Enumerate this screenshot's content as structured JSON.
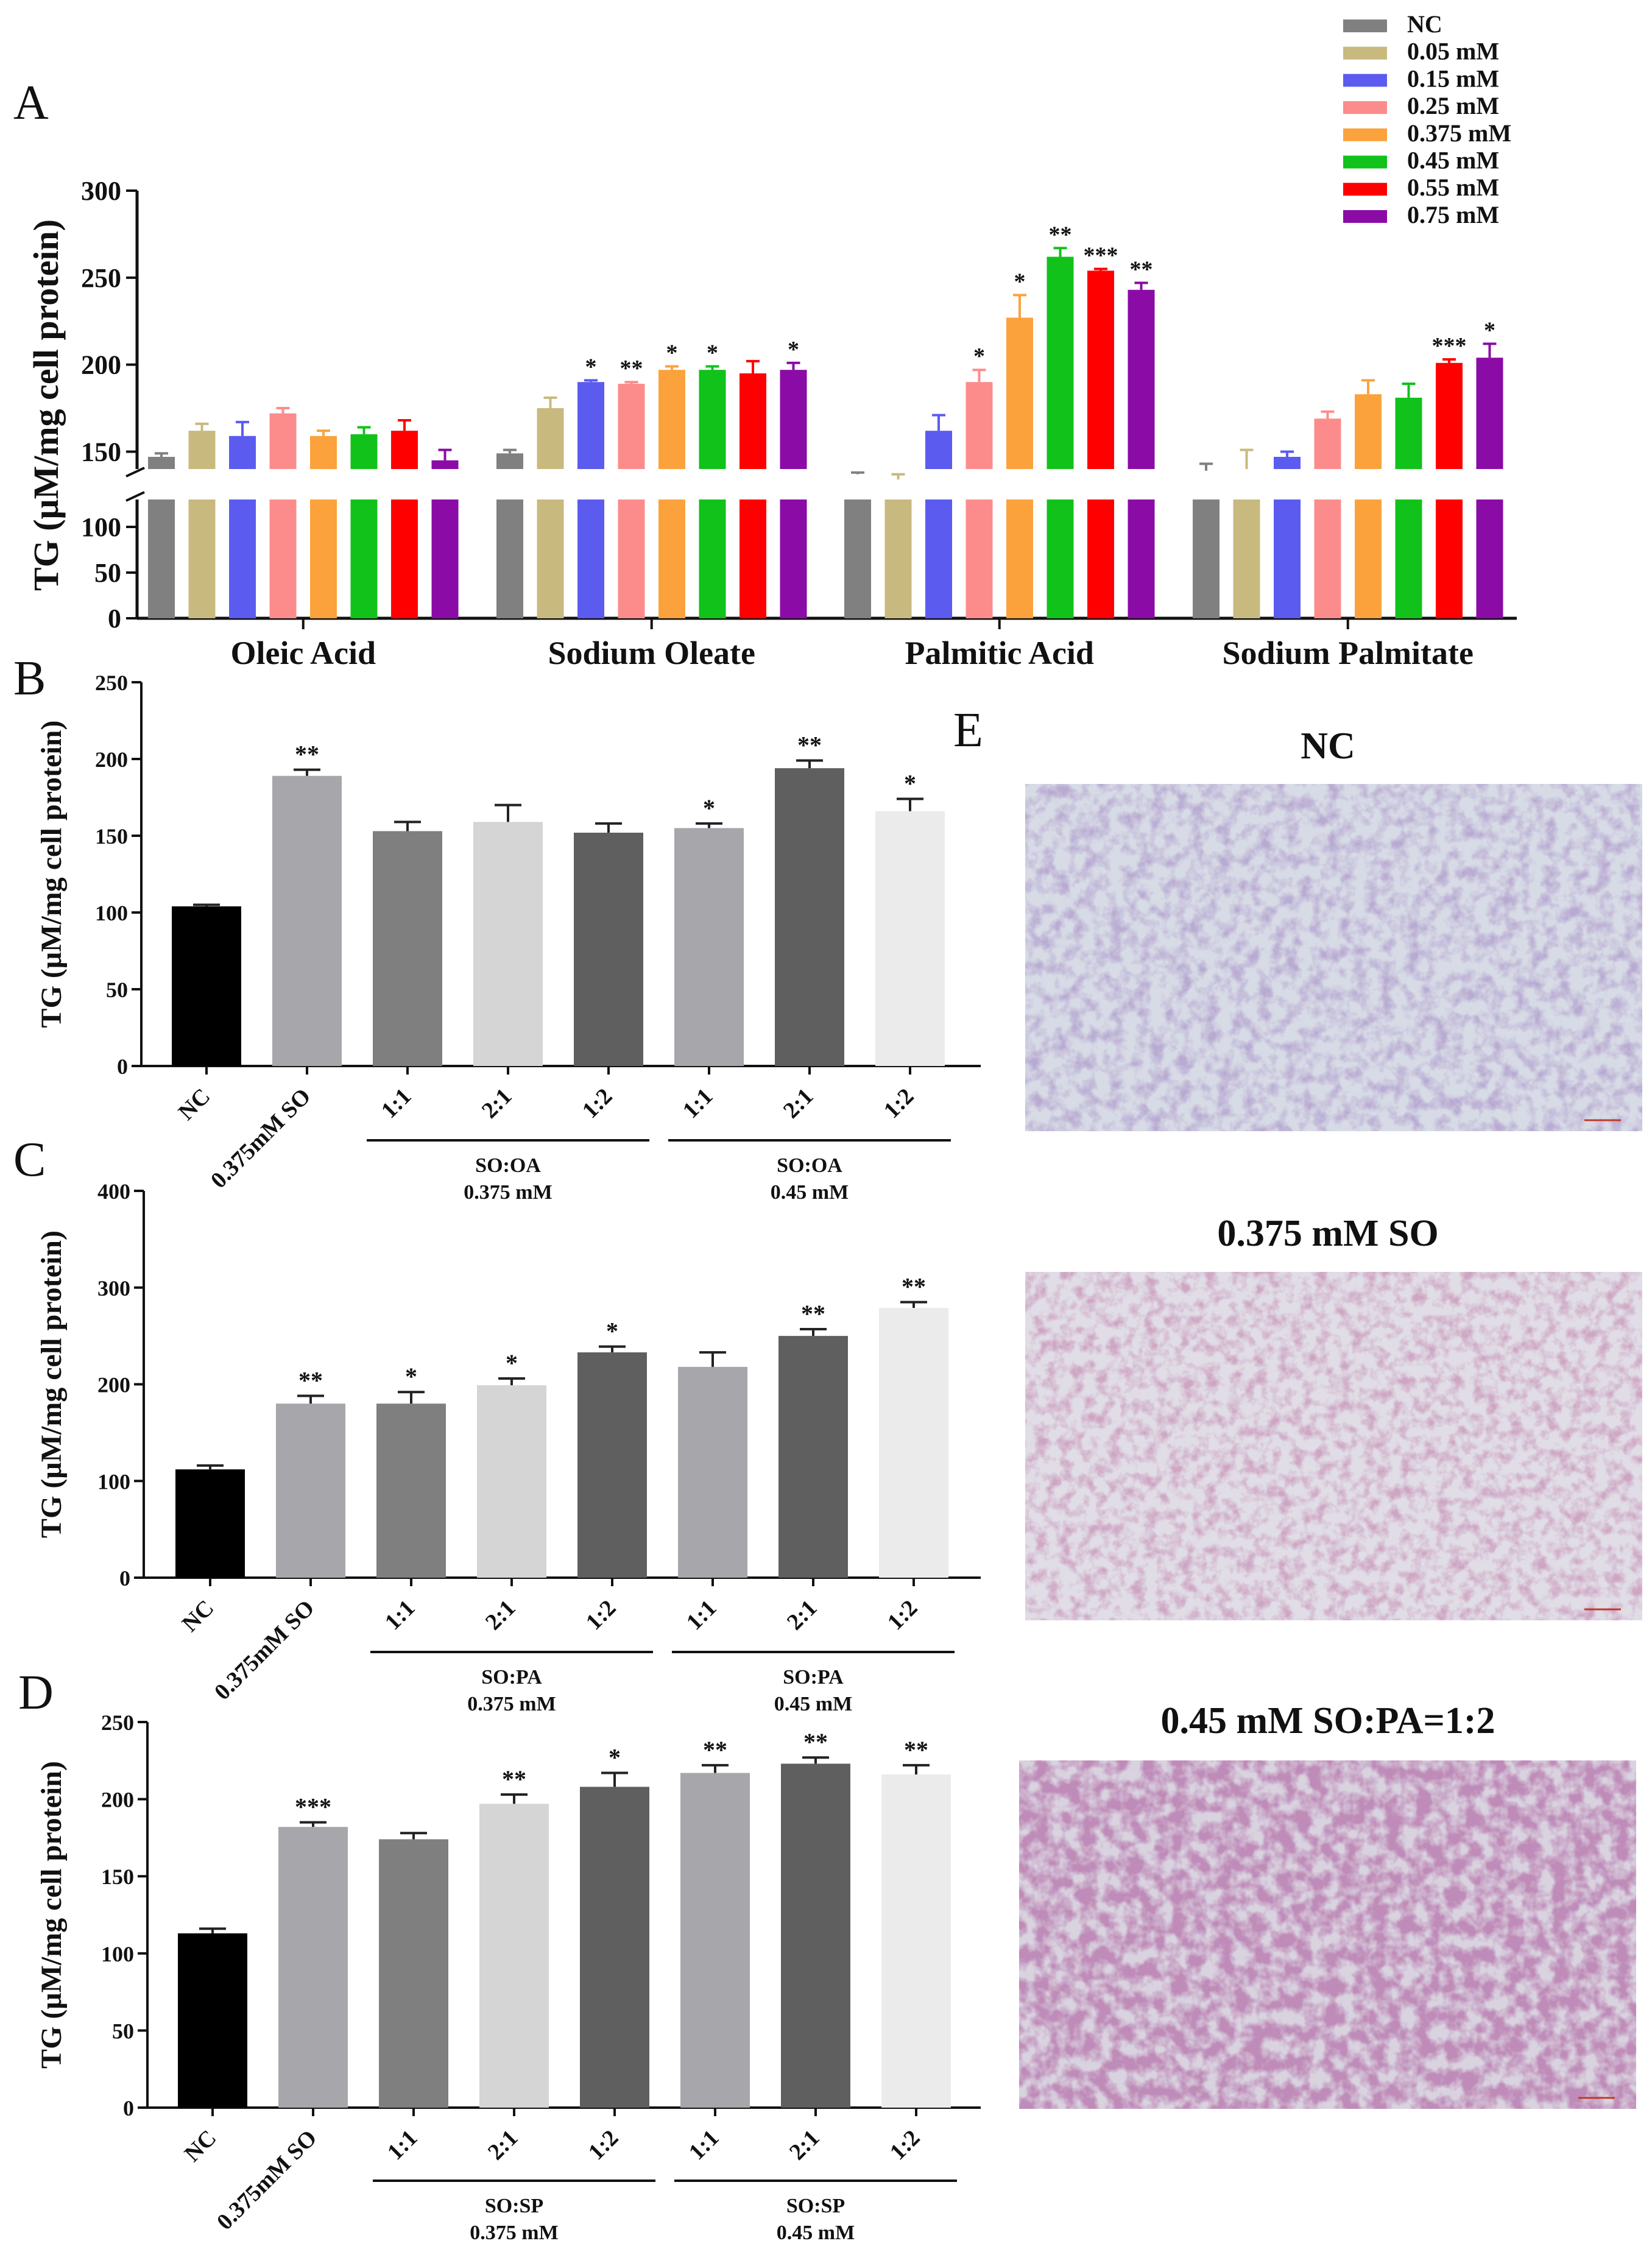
{
  "panel_letters": [
    "A",
    "B",
    "C",
    "D",
    "E"
  ],
  "colors": {
    "conc": [
      "#808080",
      "#c8b97e",
      "#5b5bf0",
      "#fc8c8c",
      "#fba23c",
      "#11c21a",
      "#ff0000",
      "#8a0ba5"
    ],
    "grays": [
      "#000000",
      "#a7a6ab",
      "#7f7f7f",
      "#d5d5d5",
      "#5f5f5f",
      "#a7a6ab",
      "#5f5f5f",
      "#ebebeb"
    ]
  },
  "chart_data": [
    {
      "id": "A",
      "type": "bar",
      "title": "",
      "ylabel": "TG (μM/mg cell protein)",
      "axis_break": [
        130,
        140
      ],
      "lower_ylim": [
        0,
        130
      ],
      "upper_ylim": [
        140,
        300
      ],
      "lower_ticks": [
        0,
        50,
        100
      ],
      "upper_ticks": [
        150,
        200,
        250,
        300
      ],
      "categories": [
        "Oleic Acid",
        "Sodium Oleate",
        "Palmitic Acid",
        "Sodium Palmitate"
      ],
      "legend": [
        "NC",
        "0.05 mM",
        "0.15 mM",
        "0.25 mM",
        "0.375 mM",
        "0.45 mM",
        "0.55 mM",
        "0.75 mM"
      ],
      "series": [
        {
          "name": "NC",
          "values": [
            147,
            149,
            137,
            139
          ],
          "errors": [
            2,
            2,
            1,
            4
          ],
          "sig": [
            "",
            "",
            "",
            ""
          ]
        },
        {
          "name": "0.05 mM",
          "values": [
            162,
            175,
            134,
            140
          ],
          "errors": [
            4,
            6,
            3,
            11
          ],
          "sig": [
            "",
            "",
            "",
            ""
          ]
        },
        {
          "name": "0.15 mM",
          "values": [
            159,
            190,
            162,
            147
          ],
          "errors": [
            8,
            1,
            9,
            3
          ],
          "sig": [
            "",
            "*",
            "",
            ""
          ]
        },
        {
          "name": "0.25 mM",
          "values": [
            172,
            189,
            190,
            169
          ],
          "errors": [
            3,
            1,
            7,
            4
          ],
          "sig": [
            "",
            "**",
            "*",
            ""
          ]
        },
        {
          "name": "0.375 mM",
          "values": [
            159,
            197,
            227,
            183
          ],
          "errors": [
            3,
            2,
            13,
            8
          ],
          "sig": [
            "",
            "*",
            "*",
            ""
          ]
        },
        {
          "name": "0.45 mM",
          "values": [
            160,
            197,
            262,
            181
          ],
          "errors": [
            4,
            2,
            5,
            8
          ],
          "sig": [
            "",
            "*",
            "**",
            ""
          ]
        },
        {
          "name": "0.55 mM",
          "values": [
            162,
            195,
            254,
            201
          ],
          "errors": [
            6,
            7,
            1,
            2
          ],
          "sig": [
            "",
            "",
            "***",
            "***"
          ]
        },
        {
          "name": "0.75 mM",
          "values": [
            145,
            197,
            243,
            204
          ],
          "errors": [
            6,
            4,
            4,
            8
          ],
          "sig": [
            "",
            "*",
            "**",
            "*"
          ]
        }
      ]
    },
    {
      "id": "B",
      "type": "bar",
      "title": "",
      "ylabel": "TG (μM/mg cell protein)",
      "ylim": [
        0,
        250
      ],
      "ticks": [
        0,
        50,
        100,
        150,
        200,
        250
      ],
      "categories": [
        "NC",
        "0.375mM SO",
        "1:1",
        "2:1",
        "1:2",
        "1:1",
        "2:1",
        "1:2"
      ],
      "values": [
        104,
        189,
        153,
        159,
        152,
        155,
        194,
        166
      ],
      "errors": [
        1,
        4,
        6,
        11,
        6,
        3,
        5,
        8
      ],
      "sig": [
        "",
        "**",
        "",
        "",
        "",
        "*",
        "**",
        "*"
      ],
      "groups": [
        {
          "label": "SO:OA",
          "sub": "0.375 mM",
          "span": [
            2,
            4
          ]
        },
        {
          "label": "SO:OA",
          "sub": "0.45 mM",
          "span": [
            5,
            7
          ]
        }
      ]
    },
    {
      "id": "C",
      "type": "bar",
      "title": "",
      "ylabel": "TG (μM/mg cell protein)",
      "ylim": [
        0,
        400
      ],
      "ticks": [
        0,
        100,
        200,
        300,
        400
      ],
      "categories": [
        "NC",
        "0.375mM SO",
        "1:1",
        "2:1",
        "1:2",
        "1:1",
        "2:1",
        "1:2"
      ],
      "values": [
        112,
        180,
        180,
        199,
        233,
        218,
        250,
        279
      ],
      "errors": [
        4,
        8,
        12,
        7,
        6,
        15,
        7,
        6
      ],
      "sig": [
        "",
        "**",
        "*",
        "*",
        "*",
        "",
        "**",
        "**"
      ],
      "groups": [
        {
          "label": "SO:PA",
          "sub": "0.375 mM",
          "span": [
            2,
            4
          ]
        },
        {
          "label": "SO:PA",
          "sub": "0.45 mM",
          "span": [
            5,
            7
          ]
        }
      ]
    },
    {
      "id": "D",
      "type": "bar",
      "title": "",
      "ylabel": "TG (μM/mg cell protein)",
      "ylim": [
        0,
        250
      ],
      "ticks": [
        0,
        50,
        100,
        150,
        200,
        250
      ],
      "categories": [
        "NC",
        "0.375mM SO",
        "1:1",
        "2:1",
        "1:2",
        "1:1",
        "2:1",
        "1:2"
      ],
      "values": [
        113,
        182,
        174,
        197,
        208,
        217,
        223,
        216
      ],
      "errors": [
        3,
        3,
        4,
        6,
        9,
        5,
        4,
        6
      ],
      "sig": [
        "",
        "***",
        "",
        "**",
        "*",
        "**",
        "**",
        "**"
      ],
      "groups": [
        {
          "label": "SO:SP",
          "sub": "0.375 mM",
          "span": [
            2,
            4
          ]
        },
        {
          "label": "SO:SP",
          "sub": "0.45 mM",
          "span": [
            5,
            7
          ]
        }
      ]
    }
  ],
  "micrographs": [
    {
      "title": "NC",
      "tone": "nc"
    },
    {
      "title": "0.375 mM SO",
      "tone": "so"
    },
    {
      "title": "0.45 mM SO:PA=1:2",
      "tone": "sopa"
    }
  ]
}
